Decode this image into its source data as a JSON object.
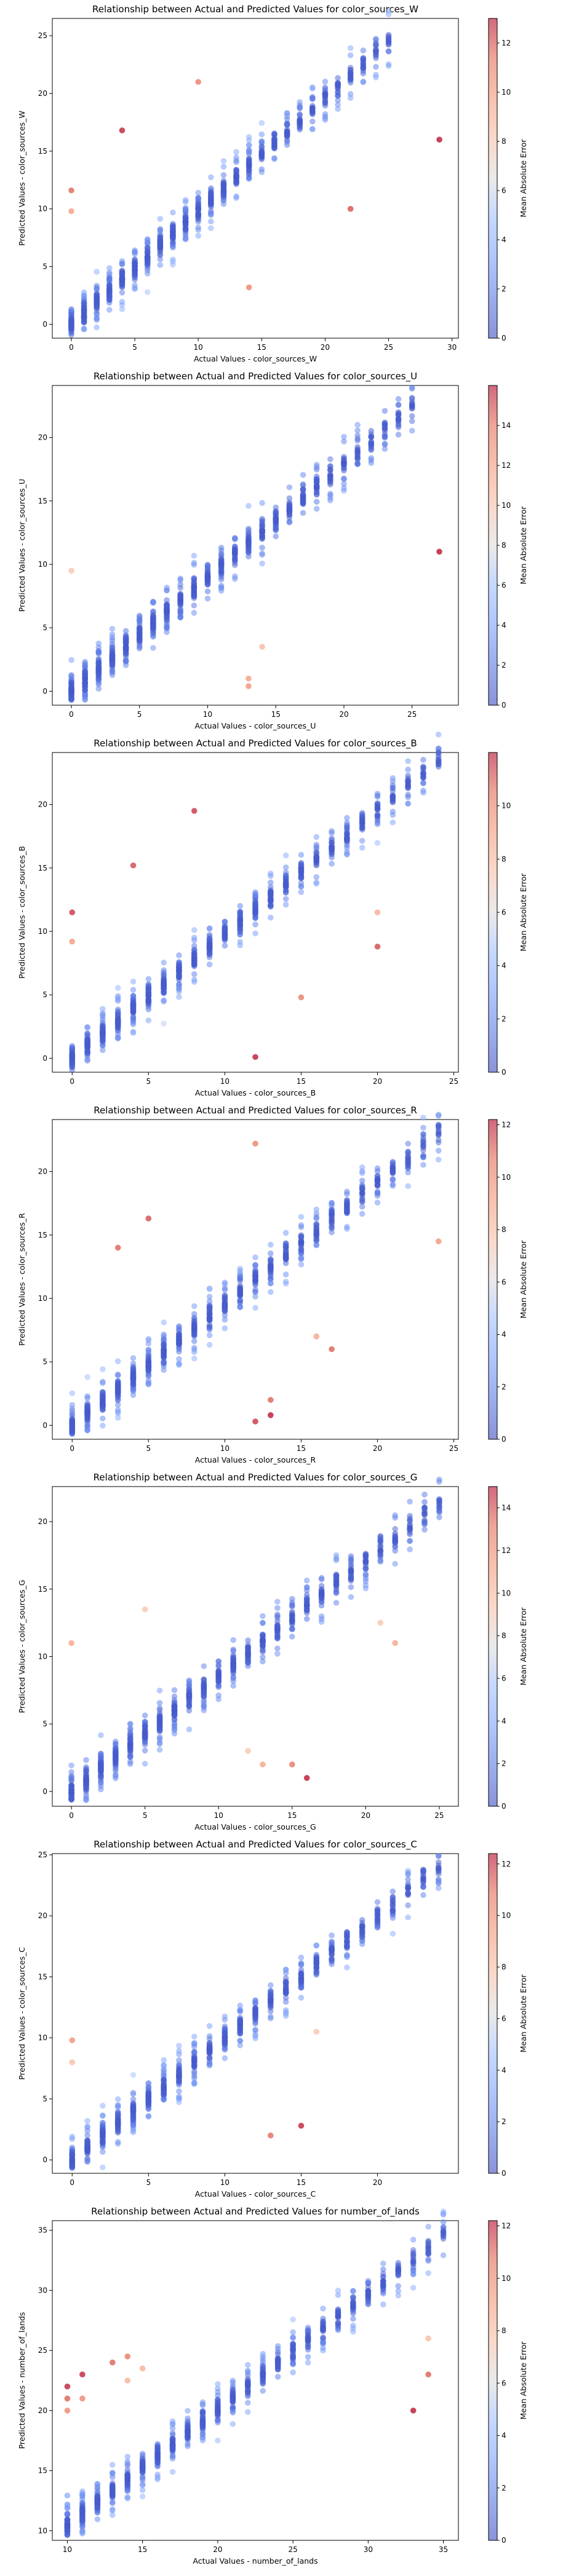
{
  "chart_data": [
    {
      "type": "scatter",
      "title": "Relationship between Actual and Predicted Values for color_sources_W",
      "xlabel": "Actual Values - color_sources_W",
      "ylabel": "Predicted Values - color_sources_W",
      "xlim": [
        -1.5,
        30.5
      ],
      "ylim": [
        -1.2,
        26.5
      ],
      "xticks": [
        0,
        5,
        10,
        15,
        20,
        25,
        30
      ],
      "yticks": [
        0,
        5,
        10,
        15,
        20,
        25
      ],
      "colorbar_label": "Mean Absolute Error",
      "colorbar_range": [
        0,
        13
      ],
      "colorbar_ticks": [
        0,
        2,
        4,
        6,
        8,
        10,
        12
      ],
      "x_range": [
        0,
        25
      ],
      "y_range": [
        0,
        24.5
      ],
      "spread": 2.8,
      "outliers": [
        [
          0,
          11.6
        ],
        [
          0,
          9.8
        ],
        [
          4,
          16.8
        ],
        [
          10,
          21
        ],
        [
          14,
          3.2
        ],
        [
          22,
          10
        ],
        [
          29,
          16
        ]
      ]
    },
    {
      "type": "scatter",
      "title": "Relationship between Actual and Predicted Values for color_sources_U",
      "xlabel": "Actual Values - color_sources_U",
      "ylabel": "Predicted Values - color_sources_U",
      "xlim": [
        -1.4,
        28.4
      ],
      "ylim": [
        -1.1,
        24.1
      ],
      "xticks": [
        0,
        5,
        10,
        15,
        20,
        25
      ],
      "yticks": [
        0,
        5,
        10,
        15,
        20
      ],
      "colorbar_label": "Mean Absolute Error",
      "colorbar_range": [
        0,
        16
      ],
      "colorbar_ticks": [
        0,
        2,
        4,
        6,
        8,
        10,
        12,
        14
      ],
      "x_range": [
        0,
        25
      ],
      "y_range": [
        0,
        22.5
      ],
      "spread": 2.6,
      "outliers": [
        [
          0,
          9.5
        ],
        [
          13,
          1
        ],
        [
          13,
          0.4
        ],
        [
          14,
          3.5
        ],
        [
          27,
          11
        ]
      ]
    },
    {
      "type": "scatter",
      "title": "Relationship between Actual and Predicted Values for color_sources_B",
      "xlabel": "Actual Values - color_sources_B",
      "ylabel": "Predicted Values - color_sources_B",
      "xlim": [
        -1.3,
        25.3
      ],
      "ylim": [
        -1.1,
        24.1
      ],
      "xticks": [
        0,
        5,
        10,
        15,
        20,
        25
      ],
      "yticks": [
        0,
        5,
        10,
        15,
        20
      ],
      "colorbar_label": "Mean Absolute Error",
      "colorbar_range": [
        0,
        12
      ],
      "colorbar_ticks": [
        0,
        2,
        4,
        6,
        8,
        10
      ],
      "x_range": [
        0,
        24
      ],
      "y_range": [
        0,
        23.5
      ],
      "spread": 2.6,
      "outliers": [
        [
          0,
          11.5
        ],
        [
          0,
          9.2
        ],
        [
          4,
          15.2
        ],
        [
          8,
          19.5
        ],
        [
          12,
          0.1
        ],
        [
          15,
          4.8
        ],
        [
          20,
          8.8
        ],
        [
          20,
          11.5
        ]
      ]
    },
    {
      "type": "scatter",
      "title": "Relationship between Actual and Predicted Values for color_sources_R",
      "xlabel": "Actual Values - color_sources_R",
      "ylabel": "Predicted Values - color_sources_R",
      "xlim": [
        -1.3,
        25.3
      ],
      "ylim": [
        -1.1,
        24.1
      ],
      "xticks": [
        0,
        5,
        10,
        15,
        20,
        25
      ],
      "yticks": [
        0,
        5,
        10,
        15,
        20
      ],
      "colorbar_label": "Mean Absolute Error",
      "colorbar_range": [
        0,
        12.2
      ],
      "colorbar_ticks": [
        0,
        2,
        4,
        6,
        8,
        10,
        12
      ],
      "x_range": [
        0,
        24
      ],
      "y_range": [
        0,
        23
      ],
      "spread": 2.6,
      "outliers": [
        [
          3,
          14
        ],
        [
          5,
          16.3
        ],
        [
          12,
          0.3
        ],
        [
          12,
          22.2
        ],
        [
          13,
          2
        ],
        [
          13,
          0.8
        ],
        [
          16,
          7
        ],
        [
          17,
          6
        ],
        [
          24,
          14.5
        ]
      ]
    },
    {
      "type": "scatter",
      "title": "Relationship between Actual and Predicted Values for color_sources_G",
      "xlabel": "Actual Values - color_sources_G",
      "ylabel": "Predicted Values - color_sources_G",
      "xlim": [
        -1.3,
        26.3
      ],
      "ylim": [
        -1.1,
        22.6
      ],
      "xticks": [
        0,
        5,
        10,
        15,
        20,
        25
      ],
      "yticks": [
        0,
        5,
        10,
        15,
        20
      ],
      "colorbar_label": "Mean Absolute Error",
      "colorbar_range": [
        0,
        15
      ],
      "colorbar_ticks": [
        0,
        2,
        4,
        6,
        8,
        10,
        12,
        14
      ],
      "x_range": [
        0,
        25
      ],
      "y_range": [
        0,
        21.5
      ],
      "spread": 2.4,
      "outliers": [
        [
          0,
          11
        ],
        [
          5,
          13.5
        ],
        [
          12,
          3
        ],
        [
          13,
          2
        ],
        [
          15,
          2
        ],
        [
          16,
          1
        ],
        [
          21,
          12.5
        ],
        [
          22,
          11
        ]
      ]
    },
    {
      "type": "scatter",
      "title": "Relationship between Actual and Predicted Values for color_sources_C",
      "xlabel": "Actual Values - color_sources_C",
      "ylabel": "Predicted Values - color_sources_C",
      "xlim": [
        -1.3,
        25.3
      ],
      "ylim": [
        -1.1,
        25.1
      ],
      "xticks": [
        0,
        5,
        10,
        15,
        20
      ],
      "yticks": [
        0,
        5,
        10,
        15,
        20,
        25
      ],
      "colorbar_label": "Mean Absolute Error",
      "colorbar_range": [
        0,
        12.4
      ],
      "colorbar_ticks": [
        0,
        2,
        4,
        6,
        8,
        10,
        12
      ],
      "x_range": [
        0,
        24
      ],
      "y_range": [
        0,
        24
      ],
      "spread": 2.6,
      "outliers": [
        [
          0,
          9.8
        ],
        [
          0,
          8
        ],
        [
          13,
          2
        ],
        [
          15,
          2.8
        ],
        [
          16,
          10.5
        ]
      ]
    },
    {
      "type": "scatter",
      "title": "Relationship between Actual and Predicted Values for number_of_lands",
      "xlabel": "Actual Values - number_of_lands",
      "ylabel": "Predicted Values - number_of_lands",
      "xlim": [
        9,
        36
      ],
      "ylim": [
        9.2,
        35.8
      ],
      "xticks": [
        10,
        15,
        20,
        25,
        30,
        35
      ],
      "yticks": [
        10,
        15,
        20,
        25,
        30,
        35
      ],
      "colorbar_label": "Mean Absolute Error",
      "colorbar_range": [
        0,
        12.2
      ],
      "colorbar_ticks": [
        0,
        2,
        4,
        6,
        8,
        10,
        12
      ],
      "x_range": [
        10,
        35
      ],
      "y_range": [
        10.5,
        34.5
      ],
      "spread": 2.6,
      "outliers": [
        [
          10,
          22
        ],
        [
          10,
          21
        ],
        [
          10,
          20
        ],
        [
          11,
          23
        ],
        [
          11,
          21
        ],
        [
          13,
          24
        ],
        [
          14,
          24.5
        ],
        [
          15,
          23.5
        ],
        [
          14,
          22.5
        ],
        [
          33,
          20
        ],
        [
          34,
          26
        ],
        [
          34,
          23
        ]
      ]
    }
  ]
}
